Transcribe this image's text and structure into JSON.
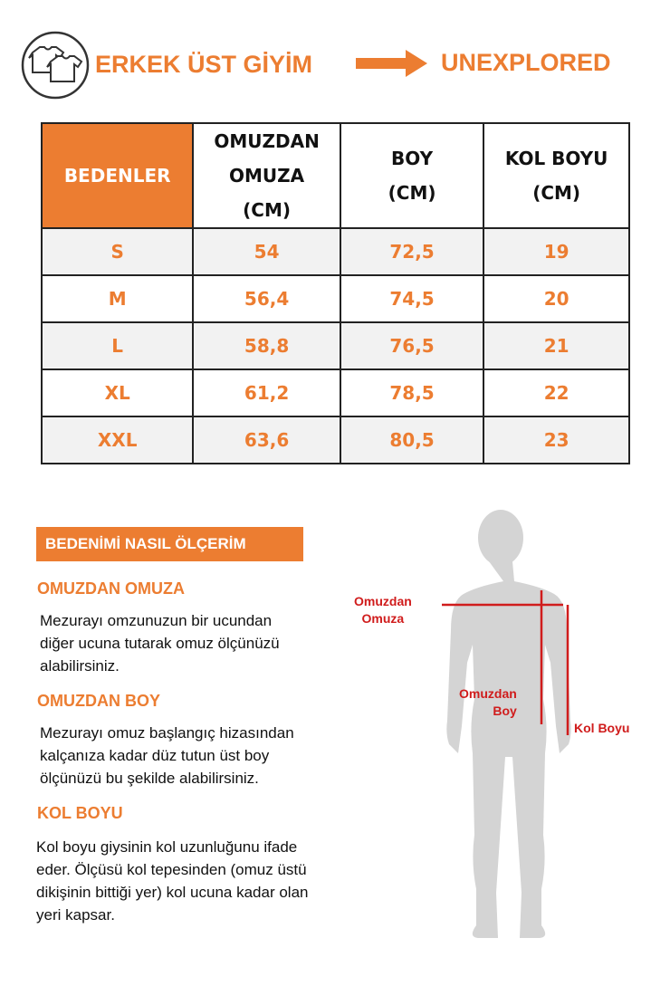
{
  "header": {
    "title": "ERKEK ÜST GİYİM",
    "brand": "UNEXPLORED"
  },
  "table": {
    "columns": [
      "BEDENLER",
      "OMUZDAN\nOMUZA\n(CM)",
      "BOY\n(CM)",
      "KOL BOYU\n(CM)"
    ],
    "rows": [
      [
        "S",
        "54",
        "72,5",
        "19"
      ],
      [
        "M",
        "56,4",
        "74,5",
        "20"
      ],
      [
        "L",
        "58,8",
        "76,5",
        "21"
      ],
      [
        "XL",
        "61,2",
        "78,5",
        "22"
      ],
      [
        "XXL",
        "63,6",
        "80,5",
        "23"
      ]
    ]
  },
  "guide": {
    "title": "BEDENİMİ NASIL ÖLÇERİM",
    "sections": [
      {
        "heading": "OMUZDAN OMUZA",
        "text": "Mezurayı omzunuzun bir ucundan\ndiğer ucuna tutarak omuz ölçünüzü\nalabilirsiniz."
      },
      {
        "heading": "OMUZDAN BOY",
        "text": "Mezurayı omuz başlangıç hizasından\nkalçanıza kadar düz tutun üst boy\nölçünüzü bu şekilde alabilirsiniz."
      },
      {
        "heading": "KOL BOYU",
        "text": "Kol boyu giysinin kol uzunluğunu ifade\neder. Ölçüsü kol tepesinden (omuz üstü\ndikişinin bittiği yer) kol ucuna kadar olan\nyeri kapsar."
      }
    ]
  },
  "figure": {
    "labels": [
      "Omuzdan\nOmuza",
      "Omuzdan\nBoy",
      "Kol Boyu"
    ]
  }
}
